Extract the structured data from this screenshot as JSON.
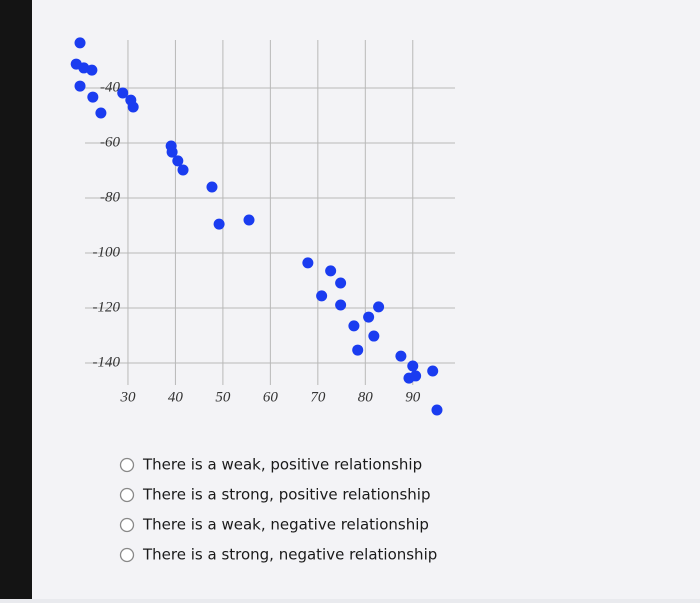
{
  "chart_data": {
    "type": "scatter",
    "x": [
      19.9,
      19.1,
      20.7,
      22.4,
      19.9,
      22.6,
      24.3,
      28.9,
      30.6,
      31.1,
      39.1,
      39.3,
      40.5,
      41.6,
      47.7,
      49.2,
      55.5,
      67.9,
      72.7,
      74.8,
      70.8,
      74.8,
      77.6,
      80.7,
      82.8,
      81.8,
      78.4,
      87.5,
      89.2,
      90.6,
      94.2,
      90.0,
      95.1
    ],
    "y": [
      -23.6,
      -31.3,
      -32.7,
      -33.5,
      -39.3,
      -43.3,
      -49.1,
      -41.8,
      -44.4,
      -46.9,
      -61.1,
      -63.3,
      -66.5,
      -69.8,
      -76.0,
      -89.5,
      -88.0,
      -103.6,
      -106.5,
      -110.9,
      -115.6,
      -118.9,
      -126.5,
      -123.3,
      -119.6,
      -130.2,
      -135.3,
      -137.5,
      -145.5,
      -144.7,
      -142.9,
      -141.1,
      -157.1
    ],
    "color": "#1a3cf0",
    "xlim": [
      18,
      97
    ],
    "ylim": [
      -160,
      -20
    ],
    "xticks": [
      30,
      40,
      50,
      60,
      70,
      80,
      90
    ],
    "yticks": [
      -40,
      -60,
      -80,
      -100,
      -120,
      -140
    ],
    "grid": true
  },
  "options": [
    "There is a weak, positive relationship",
    "There is a strong, positive relationship",
    "There is a weak, negative relationship",
    "There is a strong, negative relationship"
  ]
}
